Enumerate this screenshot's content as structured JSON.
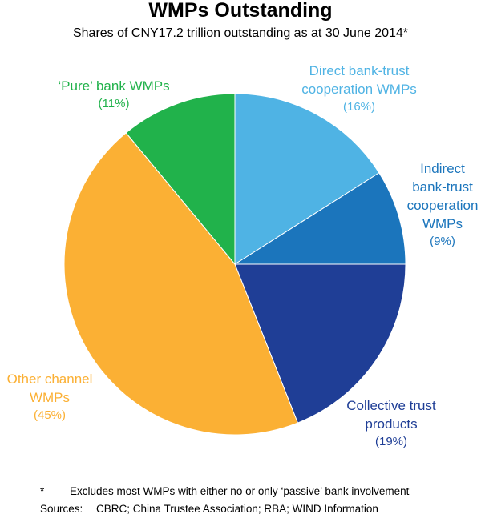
{
  "chart_data": {
    "type": "pie",
    "title": "WMPs Outstanding",
    "subtitle": "Shares of CNY17.2 trillion outstanding as at 30 June 2014*",
    "slices": [
      {
        "name": "Direct bank-trust\ncooperation WMPs",
        "pct_label": "(16%)",
        "value": 16,
        "color": "#4FB3E4"
      },
      {
        "name": "Indirect\nbank-trust\ncooperation\nWMPs",
        "pct_label": "(9%)",
        "value": 9,
        "color": "#1B75BC"
      },
      {
        "name": "Collective trust\nproducts",
        "pct_label": "(19%)",
        "value": 19,
        "color": "#1F3E96"
      },
      {
        "name": "Other channel\nWMPs",
        "pct_label": "(45%)",
        "value": 45,
        "color": "#FBB034"
      },
      {
        "name": "‘Pure’ bank WMPs",
        "pct_label": "(11%)",
        "value": 11,
        "color": "#21B24B"
      }
    ],
    "start_angle_deg": 0,
    "direction": "clockwise"
  },
  "footnote": {
    "marker": "*",
    "text": "Excludes most WMPs with either no or only ‘passive’ bank involvement",
    "sources_label": "Sources:",
    "sources_text": "CBRC; China Trustee Association; RBA; WIND Information"
  }
}
